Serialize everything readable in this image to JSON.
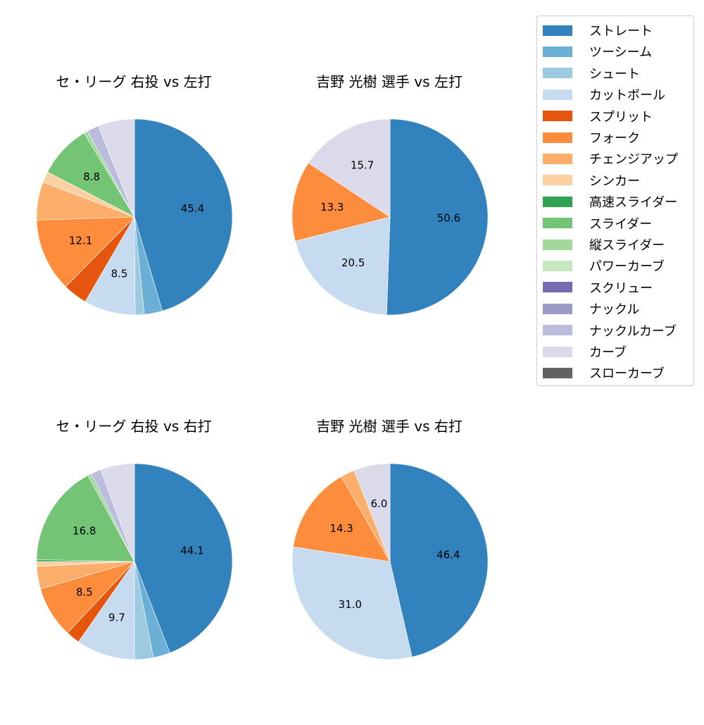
{
  "chart_data": [
    {
      "type": "pie",
      "title": "セ・リーグ 右投 vs 左打",
      "labels": [
        "ストレート",
        "ツーシーム",
        "シュート",
        "カットボール",
        "スプリット",
        "フォーク",
        "チェンジアップ",
        "シンカー",
        "スライダー",
        "縦スライダー",
        "ナックルカーブ",
        "カーブ"
      ],
      "values": [
        45.4,
        3.0,
        1.5,
        8.5,
        4.0,
        12.1,
        6.3,
        1.8,
        8.8,
        0.6,
        2.0,
        6.0
      ],
      "shown_labels": [
        "45.4",
        "",
        "",
        "8.5",
        "",
        "12.1",
        "",
        "",
        "8.8",
        "",
        "",
        ""
      ]
    },
    {
      "type": "pie",
      "title": "吉野 光樹 選手 vs 左打",
      "labels": [
        "ストレート",
        "カットボール",
        "フォーク",
        "カーブ"
      ],
      "values": [
        50.6,
        20.5,
        13.3,
        15.7
      ],
      "shown_labels": [
        "50.6",
        "20.5",
        "13.3",
        "15.7"
      ]
    },
    {
      "type": "pie",
      "title": "セ・リーグ 右投 vs 右打",
      "labels": [
        "ストレート",
        "ツーシーム",
        "シュート",
        "カットボール",
        "スプリット",
        "フォーク",
        "チェンジアップ",
        "シンカー",
        "高速スライダー",
        "スライダー",
        "縦スライダー",
        "ナックルカーブ",
        "カーブ"
      ],
      "values": [
        44.1,
        2.8,
        3.1,
        9.7,
        2.3,
        8.5,
        3.7,
        0.8,
        0.3,
        16.8,
        0.6,
        1.7,
        5.6
      ],
      "shown_labels": [
        "44.1",
        "",
        "",
        "9.7",
        "",
        "8.5",
        "",
        "",
        "",
        "16.8",
        "",
        "",
        ""
      ]
    },
    {
      "type": "pie",
      "title": "吉野 光樹 選手 vs 右打",
      "labels": [
        "ストレート",
        "カットボール",
        "フォーク",
        "チェンジアップ",
        "カーブ"
      ],
      "values": [
        46.4,
        31.0,
        14.3,
        2.3,
        6.0
      ],
      "shown_labels": [
        "46.4",
        "31.0",
        "14.3",
        "",
        "6.0"
      ]
    }
  ],
  "panels": [
    {
      "title": "セ・リーグ 右投 vs 左打"
    },
    {
      "title": "吉野 光樹 選手 vs 左打"
    },
    {
      "title": "セ・リーグ 右投 vs 右打"
    },
    {
      "title": "吉野 光樹 選手 vs 右打"
    }
  ],
  "legend": {
    "items": [
      {
        "label": "ストレート",
        "color": "#3182bd"
      },
      {
        "label": "ツーシーム",
        "color": "#6baed6"
      },
      {
        "label": "シュート",
        "color": "#9ecae1"
      },
      {
        "label": "カットボール",
        "color": "#c6dbef"
      },
      {
        "label": "スプリット",
        "color": "#e6550d"
      },
      {
        "label": "フォーク",
        "color": "#fd8d3c"
      },
      {
        "label": "チェンジアップ",
        "color": "#fdae6b"
      },
      {
        "label": "シンカー",
        "color": "#fdd0a2"
      },
      {
        "label": "高速スライダー",
        "color": "#31a354"
      },
      {
        "label": "スライダー",
        "color": "#74c476"
      },
      {
        "label": "縦スライダー",
        "color": "#a1d99b"
      },
      {
        "label": "パワーカーブ",
        "color": "#c7e9c0"
      },
      {
        "label": "スクリュー",
        "color": "#756bb1"
      },
      {
        "label": "ナックル",
        "color": "#9e9ac8"
      },
      {
        "label": "ナックルカーブ",
        "color": "#bcbddc"
      },
      {
        "label": "カーブ",
        "color": "#dadaeb"
      },
      {
        "label": "スローカーブ",
        "color": "#636363"
      }
    ]
  }
}
